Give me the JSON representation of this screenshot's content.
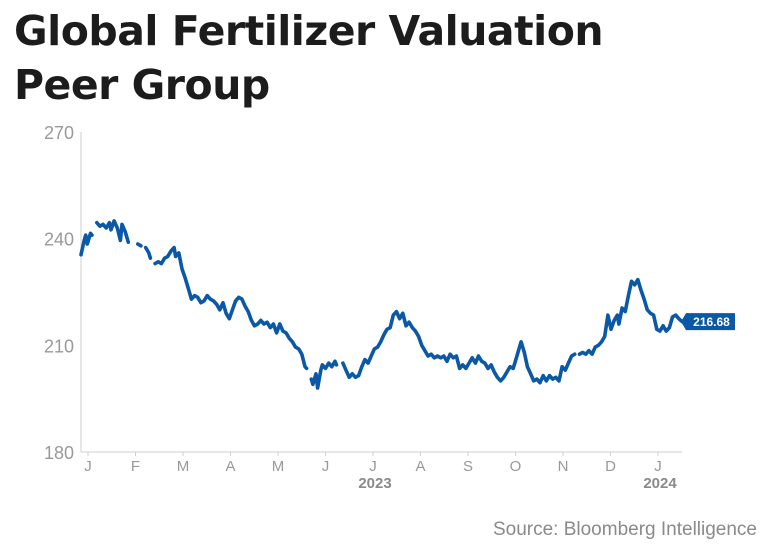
{
  "title_lines": [
    "Global Fertilizer Valuation",
    "Peer Group"
  ],
  "source": "Source: Bloomberg Intelligence",
  "colors": {
    "line": "#0a58a6",
    "axis": "#cfcfcf",
    "tick_text": "#999999",
    "year_text": "#8a8a8a",
    "label_bg": "#0a58a6",
    "label_text": "#ffffff"
  },
  "chart_data": {
    "type": "line",
    "title": "Global Fertilizer Valuation Peer Group",
    "xlabel": "",
    "ylabel": "",
    "ylim": [
      180,
      270
    ],
    "yticks": [
      180,
      210,
      240,
      270
    ],
    "grid": false,
    "last_value_label": "216.68",
    "month_ticks": [
      "J",
      "F",
      "M",
      "A",
      "M",
      "J",
      "J",
      "A",
      "S",
      "O",
      "N",
      "D",
      "J"
    ],
    "year_labels": [
      {
        "text": "2023",
        "under_tick": 6
      },
      {
        "text": "2024",
        "under_tick": 12
      }
    ],
    "x_start": "2023-01-03",
    "x_end": "2024-01-19",
    "series": [
      {
        "values": [
          [
            "2023-01-03",
            235.5
          ],
          [
            "2023-01-05",
            239.5
          ],
          [
            "2023-01-06",
            241.0
          ],
          [
            "2023-01-07",
            238.5
          ],
          [
            "2023-01-09",
            241.5
          ],
          [
            "2023-01-10",
            241.0
          ],
          [
            "2023-01-13",
            244.5
          ],
          [
            "2023-01-15",
            243.5
          ],
          [
            "2023-01-17",
            244.0
          ],
          [
            "2023-01-19",
            243.0
          ],
          [
            "2023-01-21",
            244.5
          ],
          [
            "2023-01-22",
            242.5
          ],
          [
            "2023-01-24",
            245.0
          ],
          [
            "2023-01-26",
            243.0
          ],
          [
            "2023-01-28",
            239.5
          ],
          [
            "2023-01-29",
            244.0
          ],
          [
            "2023-01-31",
            242.0
          ],
          [
            "2023-02-02",
            239.0
          ],
          [
            "2023-02-05",
            239.0
          ],
          [
            "2023-02-08",
            238.5
          ],
          [
            "2023-02-10",
            238.0
          ],
          [
            "2023-02-13",
            237.5
          ],
          [
            "2023-02-15",
            236.0
          ],
          [
            "2023-02-16",
            234.5
          ],
          [
            "2023-02-19",
            233.0
          ],
          [
            "2023-02-21",
            233.5
          ],
          [
            "2023-02-23",
            233.0
          ],
          [
            "2023-02-25",
            234.5
          ],
          [
            "2023-02-27",
            235.0
          ],
          [
            "2023-03-01",
            236.5
          ],
          [
            "2023-03-03",
            237.5
          ],
          [
            "2023-03-04",
            235.0
          ],
          [
            "2023-03-06",
            236.0
          ],
          [
            "2023-03-08",
            231.5
          ],
          [
            "2023-03-10",
            229.0
          ],
          [
            "2023-03-12",
            226.0
          ],
          [
            "2023-03-14",
            223.0
          ],
          [
            "2023-03-16",
            224.0
          ],
          [
            "2023-03-18",
            223.5
          ],
          [
            "2023-03-20",
            222.0
          ],
          [
            "2023-03-22",
            222.5
          ],
          [
            "2023-03-24",
            224.0
          ],
          [
            "2023-03-26",
            223.0
          ],
          [
            "2023-03-28",
            222.5
          ],
          [
            "2023-03-30",
            221.5
          ],
          [
            "2023-04-01",
            220.0
          ],
          [
            "2023-04-03",
            222.0
          ],
          [
            "2023-04-05",
            219.0
          ],
          [
            "2023-04-07",
            217.5
          ],
          [
            "2023-04-09",
            220.0
          ],
          [
            "2023-04-11",
            222.5
          ],
          [
            "2023-04-13",
            223.5
          ],
          [
            "2023-04-15",
            223.0
          ],
          [
            "2023-04-17",
            221.0
          ],
          [
            "2023-04-19",
            219.5
          ],
          [
            "2023-04-21",
            217.0
          ],
          [
            "2023-04-23",
            215.5
          ],
          [
            "2023-04-25",
            216.0
          ],
          [
            "2023-04-27",
            217.0
          ],
          [
            "2023-04-29",
            216.0
          ],
          [
            "2023-05-01",
            216.5
          ],
          [
            "2023-05-03",
            215.0
          ],
          [
            "2023-05-05",
            216.0
          ],
          [
            "2023-05-07",
            213.5
          ],
          [
            "2023-05-09",
            216.0
          ],
          [
            "2023-05-11",
            214.0
          ],
          [
            "2023-05-13",
            213.5
          ],
          [
            "2023-05-15",
            212.0
          ],
          [
            "2023-05-17",
            211.0
          ],
          [
            "2023-05-19",
            209.5
          ],
          [
            "2023-05-21",
            209.0
          ],
          [
            "2023-05-23",
            207.5
          ],
          [
            "2023-05-25",
            204.0
          ],
          [
            "2023-05-26",
            203.5
          ],
          [
            "2023-05-29",
            200.5
          ],
          [
            "2023-05-30",
            199.0
          ],
          [
            "2023-06-01",
            202.0
          ],
          [
            "2023-06-02",
            198.0
          ],
          [
            "2023-06-04",
            203.0
          ],
          [
            "2023-06-05",
            204.5
          ],
          [
            "2023-06-07",
            203.5
          ],
          [
            "2023-06-09",
            205.0
          ],
          [
            "2023-06-11",
            204.0
          ],
          [
            "2023-06-13",
            205.5
          ],
          [
            "2023-06-14",
            204.5
          ],
          [
            "2023-06-18",
            205.0
          ],
          [
            "2023-06-20",
            203.0
          ],
          [
            "2023-06-22",
            201.0
          ],
          [
            "2023-06-24",
            202.0
          ],
          [
            "2023-06-26",
            201.0
          ],
          [
            "2023-06-28",
            201.5
          ],
          [
            "2023-06-30",
            204.0
          ],
          [
            "2023-07-02",
            206.0
          ],
          [
            "2023-07-04",
            205.0
          ],
          [
            "2023-07-06",
            207.0
          ],
          [
            "2023-07-08",
            209.0
          ],
          [
            "2023-07-10",
            209.5
          ],
          [
            "2023-07-12",
            211.0
          ],
          [
            "2023-07-14",
            213.0
          ],
          [
            "2023-07-16",
            214.5
          ],
          [
            "2023-07-18",
            215.0
          ],
          [
            "2023-07-20",
            218.5
          ],
          [
            "2023-07-22",
            219.5
          ],
          [
            "2023-07-24",
            217.5
          ],
          [
            "2023-07-26",
            219.0
          ],
          [
            "2023-07-28",
            215.5
          ],
          [
            "2023-07-30",
            216.5
          ],
          [
            "2023-08-01",
            215.0
          ],
          [
            "2023-08-03",
            214.0
          ],
          [
            "2023-08-05",
            212.5
          ],
          [
            "2023-08-07",
            210.0
          ],
          [
            "2023-08-09",
            208.5
          ],
          [
            "2023-08-11",
            207.0
          ],
          [
            "2023-08-13",
            207.5
          ],
          [
            "2023-08-15",
            206.5
          ],
          [
            "2023-08-17",
            207.0
          ],
          [
            "2023-08-19",
            206.5
          ],
          [
            "2023-08-21",
            207.0
          ],
          [
            "2023-08-23",
            205.5
          ],
          [
            "2023-08-25",
            207.5
          ],
          [
            "2023-08-27",
            206.5
          ],
          [
            "2023-08-29",
            207.0
          ],
          [
            "2023-08-31",
            203.5
          ],
          [
            "2023-09-02",
            204.5
          ],
          [
            "2023-09-04",
            203.5
          ],
          [
            "2023-09-06",
            205.0
          ],
          [
            "2023-09-08",
            206.5
          ],
          [
            "2023-09-10",
            205.0
          ],
          [
            "2023-09-12",
            207.0
          ],
          [
            "2023-09-14",
            205.5
          ],
          [
            "2023-09-16",
            205.0
          ],
          [
            "2023-09-18",
            203.5
          ],
          [
            "2023-09-20",
            204.5
          ],
          [
            "2023-09-22",
            202.5
          ],
          [
            "2023-09-24",
            201.0
          ],
          [
            "2023-09-26",
            200.0
          ],
          [
            "2023-09-28",
            201.0
          ],
          [
            "2023-09-30",
            202.5
          ],
          [
            "2023-10-02",
            204.0
          ],
          [
            "2023-10-04",
            203.5
          ],
          [
            "2023-10-06",
            206.5
          ],
          [
            "2023-10-08",
            209.5
          ],
          [
            "2023-10-09",
            211.0
          ],
          [
            "2023-10-11",
            208.0
          ],
          [
            "2023-10-13",
            204.0
          ],
          [
            "2023-10-15",
            202.0
          ],
          [
            "2023-10-17",
            200.0
          ],
          [
            "2023-10-19",
            200.5
          ],
          [
            "2023-10-21",
            199.5
          ],
          [
            "2023-10-23",
            201.5
          ],
          [
            "2023-10-25",
            200.0
          ],
          [
            "2023-10-27",
            201.5
          ],
          [
            "2023-10-29",
            200.5
          ],
          [
            "2023-10-31",
            201.0
          ],
          [
            "2023-11-02",
            200.0
          ],
          [
            "2023-11-04",
            204.0
          ],
          [
            "2023-11-06",
            203.0
          ],
          [
            "2023-11-08",
            205.0
          ],
          [
            "2023-11-10",
            207.0
          ],
          [
            "2023-11-12",
            207.5
          ],
          [
            "2023-11-15",
            207.5
          ],
          [
            "2023-11-17",
            208.0
          ],
          [
            "2023-11-19",
            207.5
          ],
          [
            "2023-11-21",
            208.5
          ],
          [
            "2023-11-23",
            207.5
          ],
          [
            "2023-11-25",
            209.5
          ],
          [
            "2023-11-27",
            210.0
          ],
          [
            "2023-11-29",
            211.0
          ],
          [
            "2023-12-01",
            212.5
          ],
          [
            "2023-12-03",
            218.5
          ],
          [
            "2023-12-05",
            214.5
          ],
          [
            "2023-12-07",
            217.0
          ],
          [
            "2023-12-09",
            218.5
          ],
          [
            "2023-12-10",
            216.0
          ],
          [
            "2023-12-12",
            220.5
          ],
          [
            "2023-12-14",
            219.5
          ],
          [
            "2023-12-16",
            224.0
          ],
          [
            "2023-12-18",
            228.0
          ],
          [
            "2023-12-20",
            227.0
          ],
          [
            "2023-12-22",
            228.5
          ],
          [
            "2023-12-24",
            225.5
          ],
          [
            "2023-12-26",
            223.0
          ],
          [
            "2023-12-28",
            220.0
          ],
          [
            "2023-12-30",
            219.0
          ],
          [
            "2024-01-01",
            218.5
          ],
          [
            "2024-01-03",
            214.5
          ],
          [
            "2024-01-05",
            214.0
          ],
          [
            "2024-01-07",
            215.5
          ],
          [
            "2024-01-09",
            214.0
          ],
          [
            "2024-01-11",
            215.0
          ],
          [
            "2024-01-13",
            218.0
          ],
          [
            "2024-01-15",
            218.5
          ],
          [
            "2024-01-17",
            217.5
          ],
          [
            "2024-01-19",
            216.68
          ]
        ]
      }
    ]
  }
}
